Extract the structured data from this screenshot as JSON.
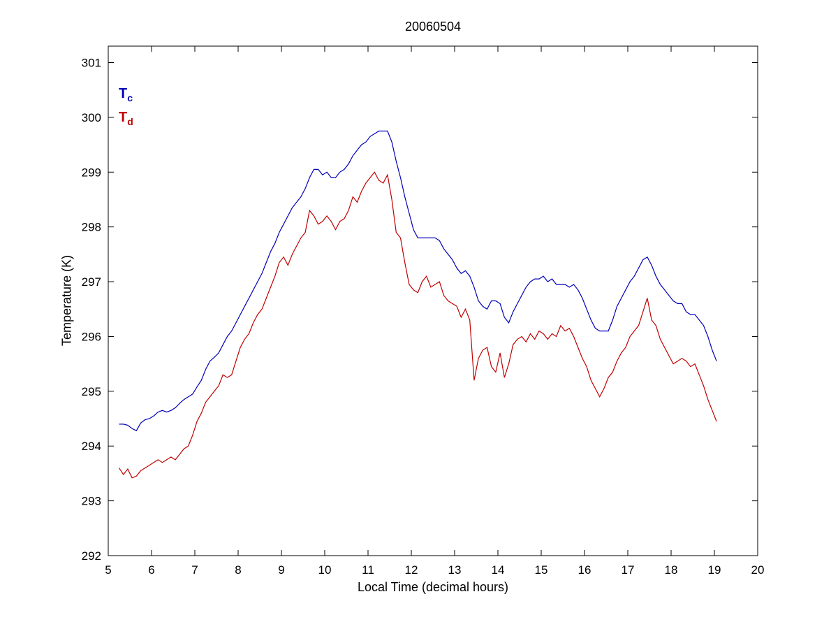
{
  "chart_data": {
    "type": "line",
    "title": "20060504",
    "xlabel": "Local Time (decimal hours)",
    "ylabel": "Temperature (K)",
    "xlim": [
      5,
      20
    ],
    "ylim": [
      292,
      301.3
    ],
    "xticks": [
      5,
      6,
      7,
      8,
      9,
      10,
      11,
      12,
      13,
      14,
      15,
      16,
      17,
      18,
      19,
      20
    ],
    "yticks": [
      292,
      293,
      294,
      295,
      296,
      297,
      298,
      299,
      300,
      301
    ],
    "grid": false,
    "legend_position": "top-left-inside",
    "x_start": 5.25,
    "x_step": 0.1,
    "series": [
      {
        "name": "Tc",
        "legend_main": "T",
        "legend_sub": "c",
        "color": "#0000b8",
        "values": [
          294.4,
          294.4,
          294.38,
          294.32,
          294.28,
          294.42,
          294.48,
          294.5,
          294.55,
          294.62,
          294.65,
          294.62,
          294.65,
          294.7,
          294.78,
          294.85,
          294.9,
          294.95,
          295.08,
          295.2,
          295.4,
          295.55,
          295.62,
          295.7,
          295.85,
          296.0,
          296.1,
          296.25,
          296.4,
          296.55,
          296.7,
          296.85,
          297.0,
          297.15,
          297.35,
          297.55,
          297.7,
          297.9,
          298.05,
          298.2,
          298.35,
          298.45,
          298.55,
          298.7,
          298.9,
          299.05,
          299.05,
          298.95,
          299.0,
          298.9,
          298.9,
          299.0,
          299.05,
          299.15,
          299.3,
          299.4,
          299.5,
          299.55,
          299.65,
          299.7,
          299.75,
          299.75,
          299.75,
          299.55,
          299.2,
          298.9,
          298.55,
          298.25,
          297.95,
          297.8,
          297.8,
          297.8,
          297.8,
          297.8,
          297.75,
          297.6,
          297.5,
          297.4,
          297.25,
          297.15,
          297.2,
          297.1,
          296.9,
          296.65,
          296.55,
          296.5,
          296.65,
          296.65,
          296.6,
          296.35,
          296.25,
          296.45,
          296.6,
          296.75,
          296.9,
          297.0,
          297.05,
          297.05,
          297.1,
          297.0,
          297.05,
          296.95,
          296.95,
          296.95,
          296.9,
          296.95,
          296.85,
          296.7,
          296.5,
          296.3,
          296.15,
          296.1,
          296.1,
          296.1,
          296.3,
          296.55,
          296.7,
          296.85,
          297.0,
          297.1,
          297.25,
          297.4,
          297.45,
          297.3,
          297.1,
          296.95,
          296.85,
          296.75,
          296.65,
          296.6,
          296.6,
          296.45,
          296.4,
          296.4,
          296.3,
          296.2,
          296.0,
          295.75,
          295.55
        ]
      },
      {
        "name": "Td",
        "legend_main": "T",
        "legend_sub": "d",
        "color": "#c00000",
        "values": [
          293.6,
          293.48,
          293.58,
          293.42,
          293.45,
          293.55,
          293.6,
          293.65,
          293.7,
          293.75,
          293.7,
          293.75,
          293.8,
          293.75,
          293.85,
          293.95,
          294.0,
          294.2,
          294.45,
          294.6,
          294.8,
          294.9,
          295.0,
          295.1,
          295.3,
          295.25,
          295.3,
          295.55,
          295.8,
          295.95,
          296.05,
          296.25,
          296.4,
          296.5,
          296.7,
          296.9,
          297.1,
          297.35,
          297.45,
          297.3,
          297.5,
          297.65,
          297.8,
          297.9,
          298.3,
          298.2,
          298.05,
          298.1,
          298.2,
          298.1,
          297.95,
          298.1,
          298.15,
          298.3,
          298.55,
          298.45,
          298.65,
          298.8,
          298.9,
          299.0,
          298.85,
          298.8,
          298.95,
          298.5,
          297.9,
          297.8,
          297.35,
          296.95,
          296.85,
          296.8,
          297.0,
          297.1,
          296.9,
          296.95,
          297.0,
          296.75,
          296.65,
          296.6,
          296.55,
          296.35,
          296.5,
          296.3,
          295.2,
          295.6,
          295.75,
          295.8,
          295.45,
          295.35,
          295.7,
          295.25,
          295.5,
          295.85,
          295.95,
          296.0,
          295.9,
          296.05,
          295.95,
          296.1,
          296.05,
          295.95,
          296.05,
          296.0,
          296.2,
          296.1,
          296.15,
          296.0,
          295.8,
          295.6,
          295.45,
          295.2,
          295.05,
          294.9,
          295.05,
          295.25,
          295.35,
          295.55,
          295.7,
          295.8,
          296.0,
          296.1,
          296.2,
          296.45,
          296.7,
          296.3,
          296.2,
          295.95,
          295.8,
          295.65,
          295.5,
          295.55,
          295.6,
          295.55,
          295.45,
          295.5,
          295.3,
          295.1,
          294.85,
          294.65,
          294.45
        ]
      }
    ]
  }
}
